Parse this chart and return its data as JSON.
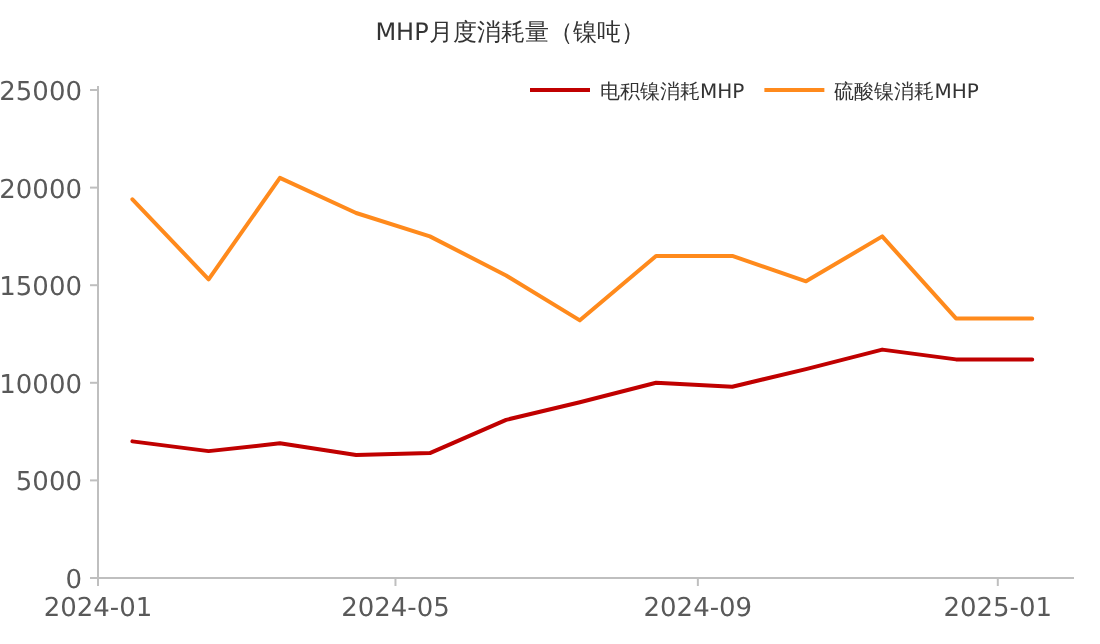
{
  "chart_data": {
    "type": "line",
    "title": "MHP月度消耗量（镍吨）",
    "x": [
      "2024-01-15",
      "2024-02-15",
      "2024-03-15",
      "2024-04-15",
      "2024-05-15",
      "2024-06-15",
      "2024-07-15",
      "2024-08-15",
      "2024-09-15",
      "2024-10-15",
      "2024-11-15",
      "2024-12-15",
      "2025-01-15"
    ],
    "series": [
      {
        "name": "电积镍消耗MHP",
        "color": "#c00000",
        "values": [
          7000,
          6500,
          6900,
          6300,
          6400,
          8100,
          9000,
          10000,
          9800,
          10700,
          11700,
          11200,
          11200
        ]
      },
      {
        "name": "硫酸镍消耗MHP",
        "color": "#ff8a1c",
        "values": [
          19400,
          15300,
          20500,
          18700,
          17500,
          15500,
          13200,
          16500,
          16500,
          15200,
          17500,
          13300,
          13300
        ]
      }
    ],
    "xlim": [
      "2024-01-01",
      "2025-02-01"
    ],
    "xticks": [
      {
        "value": "2024-01-01",
        "label": "2024-01"
      },
      {
        "value": "2024-05-01",
        "label": "2024-05"
      },
      {
        "value": "2024-09-01",
        "label": "2024-09"
      },
      {
        "value": "2025-01-01",
        "label": "2025-01"
      }
    ],
    "ylim": [
      0,
      25000
    ],
    "yticks": [
      0,
      5000,
      10000,
      15000,
      20000,
      25000
    ],
    "legend": "top right",
    "grid": false,
    "marker": "none",
    "line_style": "solid"
  }
}
